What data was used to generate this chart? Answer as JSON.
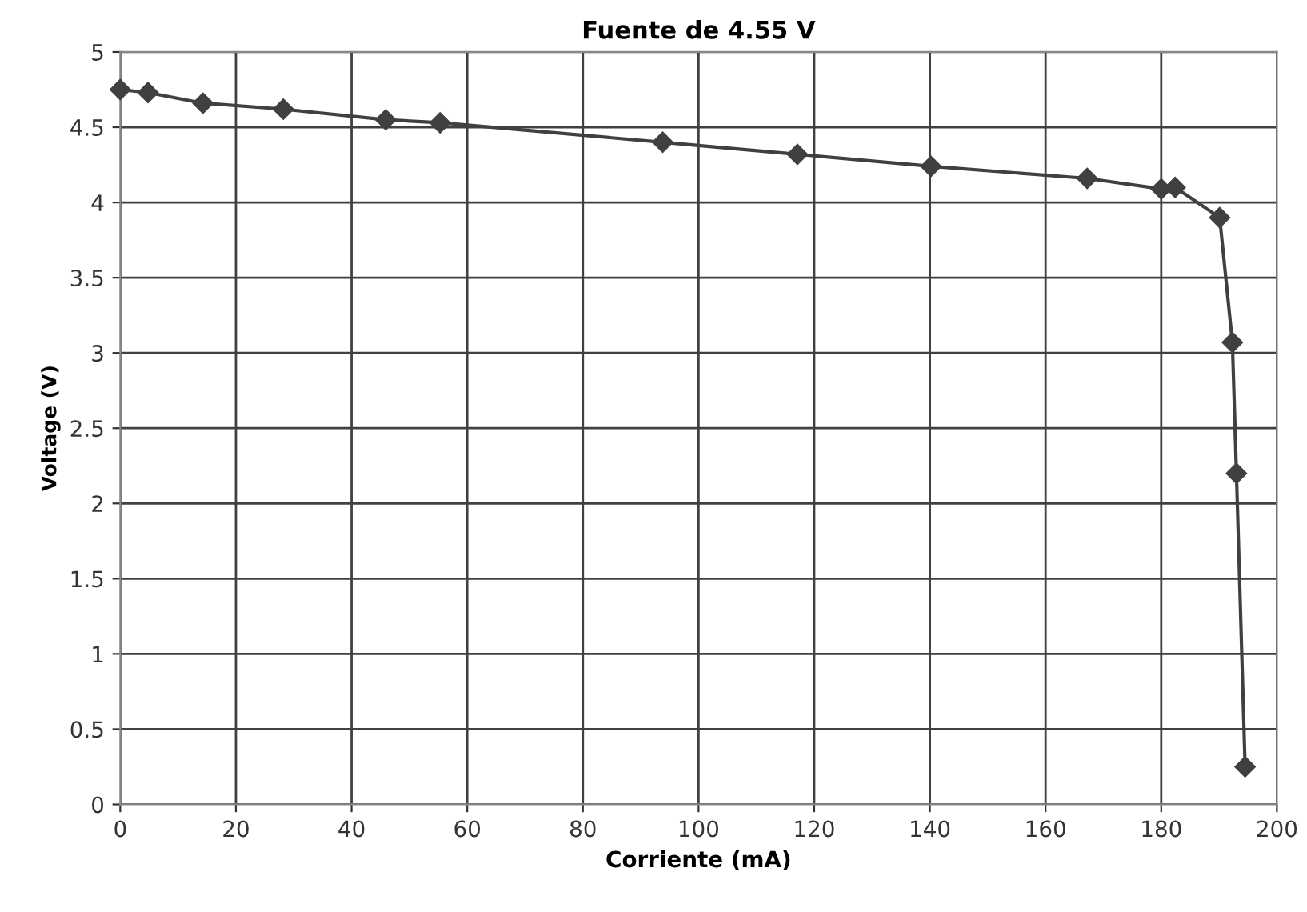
{
  "chart_data": {
    "type": "line",
    "title": "Fuente de 4.55 V",
    "xlabel": "Corriente (mA)",
    "ylabel": "Voltage (V)",
    "series": [
      {
        "color": "#404040",
        "x": [
          0,
          4.8,
          14.3,
          28.2,
          45.9,
          55.3,
          93.8,
          117.1,
          140.2,
          167.2,
          180,
          182.4,
          190.1,
          192.3,
          193,
          194.5
        ],
        "values": [
          4.75,
          4.73,
          4.66,
          4.62,
          4.55,
          4.53,
          4.4,
          4.32,
          4.24,
          4.16,
          4.09,
          4.1,
          3.9,
          3.07,
          2.2,
          0.25
        ]
      }
    ],
    "xlim": [
      0,
      200
    ],
    "xticks": [
      0,
      20,
      40,
      60,
      80,
      100,
      120,
      140,
      160,
      180,
      200
    ],
    "ylim": [
      0,
      5
    ],
    "yticks": [
      0,
      0.5,
      1,
      1.5,
      2,
      2.5,
      3,
      3.5,
      4,
      4.5,
      5
    ],
    "grid": true,
    "marker": "diamond",
    "line_style": "solid",
    "legend": false
  }
}
